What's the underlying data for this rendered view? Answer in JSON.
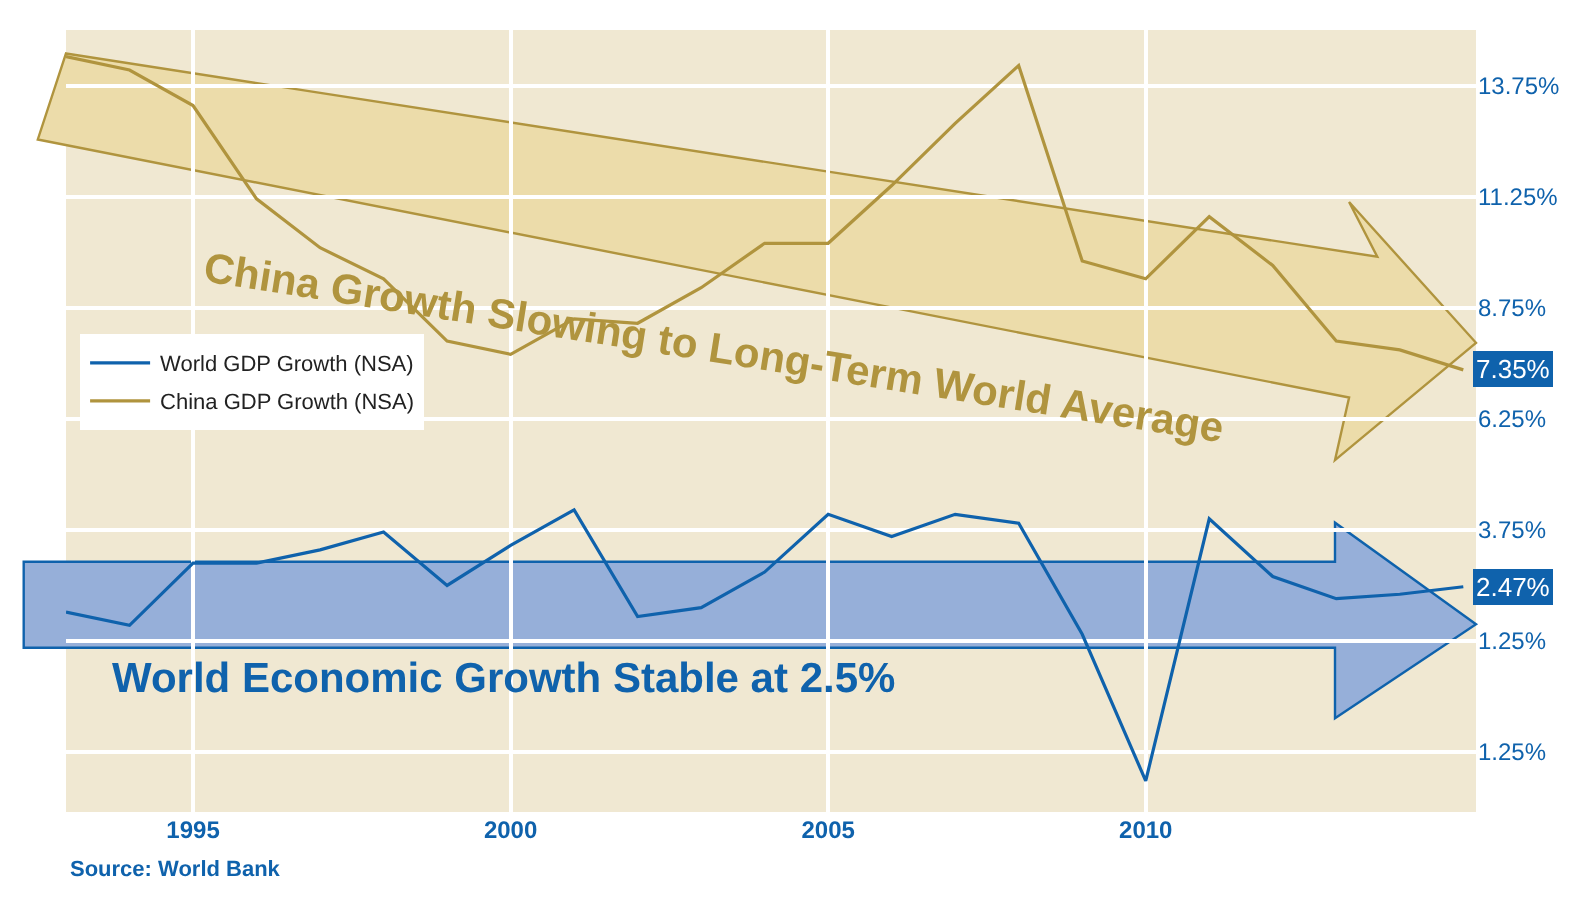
{
  "chart_data": {
    "type": "line",
    "x": [
      1993,
      1994,
      1995,
      1996,
      1997,
      1998,
      1999,
      2000,
      2001,
      2002,
      2003,
      2004,
      2005,
      2006,
      2007,
      2008,
      2009,
      2010,
      2011,
      2012,
      2013,
      2014,
      2015
    ],
    "series": [
      {
        "name": "World GDP Growth (NSA)",
        "color": "#0f62ac",
        "values": [
          1.9,
          1.6,
          3.0,
          3.0,
          3.3,
          3.7,
          2.5,
          3.4,
          4.2,
          1.8,
          2.0,
          2.8,
          4.1,
          3.6,
          4.1,
          3.9,
          1.4,
          -1.9,
          4.0,
          2.7,
          2.2,
          2.3,
          2.47
        ],
        "value_labels": [
          null,
          null,
          null,
          null,
          null,
          null,
          null,
          null,
          null,
          null,
          null,
          null,
          null,
          null,
          null,
          null,
          null,
          null,
          null,
          null,
          null,
          null,
          "2.47%"
        ]
      },
      {
        "name": "China GDP Growth (NSA)",
        "color": "#b0943e",
        "values": [
          14.4,
          14.1,
          13.3,
          11.2,
          10.1,
          9.4,
          8.0,
          7.7,
          8.5,
          8.4,
          9.2,
          10.2,
          10.2,
          11.5,
          12.9,
          14.2,
          9.8,
          9.4,
          10.8,
          9.7,
          8.0,
          7.8,
          7.35
        ],
        "value_labels": [
          null,
          null,
          null,
          null,
          null,
          null,
          null,
          null,
          null,
          null,
          null,
          null,
          null,
          null,
          null,
          null,
          null,
          null,
          null,
          null,
          null,
          null,
          "7.35%"
        ]
      }
    ],
    "xlim": [
      1993,
      2015.2
    ],
    "xticks": [
      1995,
      2000,
      2005,
      2010
    ],
    "ylim": [
      -2.6,
      15
    ],
    "yticks": [
      {
        "value": 13.75,
        "label": "13.75%"
      },
      {
        "value": 11.25,
        "label": "11.25%"
      },
      {
        "value": 8.75,
        "label": "8.75%"
      },
      {
        "value": 6.25,
        "label": "6.25%"
      },
      {
        "value": 3.75,
        "label": "3.75%"
      },
      {
        "value": 1.25,
        "label": "1.25%"
      },
      {
        "value": -1.25,
        "label": "1.25%"
      }
    ],
    "grid": true,
    "legend": "left",
    "marker": "none",
    "line_style": "solid",
    "annotations": [
      "China Growth Slowing to Long-Term World Average",
      "World Economic Growth Stable at 2.5%",
      "Source: World Bank"
    ]
  }
}
